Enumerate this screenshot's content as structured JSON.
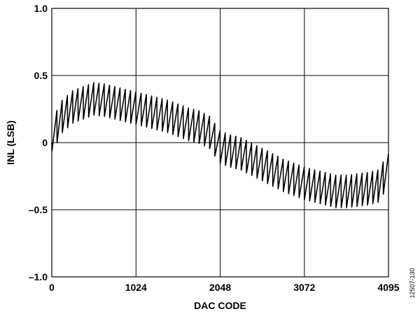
{
  "chart_data": {
    "type": "line",
    "title": "",
    "xlabel": "DAC CODE",
    "ylabel": "INL (LSB)",
    "xlim": [
      0,
      4095
    ],
    "ylim": [
      -1.0,
      1.0
    ],
    "x_ticks": [
      0,
      1024,
      2048,
      3072,
      4095
    ],
    "x_tick_labels": [
      "0",
      "1024",
      "2048",
      "3072",
      "4095"
    ],
    "y_ticks": [
      -1.0,
      -0.5,
      0,
      0.5,
      1.0
    ],
    "y_tick_labels": [
      "–1.0",
      "–0.5",
      "0",
      "0.5",
      "1.0"
    ],
    "grid": true,
    "series": [
      {
        "color": "#000000",
        "sawtooth_period_codes": 64,
        "sawtooth_peak_to_peak_lsb": 0.25,
        "envelope": {
          "x": [
            0,
            128,
            256,
            384,
            512,
            640,
            768,
            896,
            1024,
            1152,
            1280,
            1408,
            1536,
            1664,
            1792,
            1920,
            2048,
            2176,
            2304,
            2432,
            2560,
            2688,
            2816,
            2944,
            3072,
            3200,
            3328,
            3456,
            3584,
            3712,
            3840,
            3968,
            4095
          ],
          "y": [
            0.05,
            0.2,
            0.27,
            0.3,
            0.33,
            0.32,
            0.3,
            0.28,
            0.26,
            0.24,
            0.22,
            0.2,
            0.17,
            0.14,
            0.12,
            0.08,
            -0.03,
            -0.06,
            -0.08,
            -0.12,
            -0.16,
            -0.2,
            -0.24,
            -0.27,
            -0.3,
            -0.32,
            -0.34,
            -0.36,
            -0.36,
            -0.35,
            -0.34,
            -0.32,
            -0.2
          ]
        }
      }
    ]
  },
  "figure_id": "12507-130"
}
